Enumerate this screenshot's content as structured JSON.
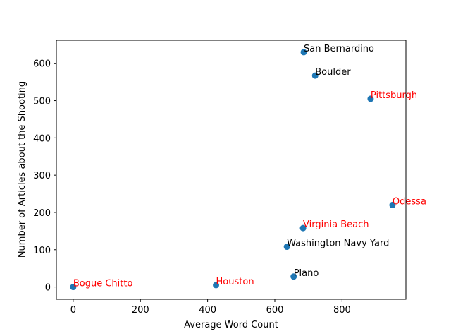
{
  "chart_data": {
    "type": "scatter",
    "title": "",
    "xlabel": "Average Word Count",
    "ylabel": "Number of Articles about the Shooting",
    "xlim": [
      -50,
      990
    ],
    "ylim": [
      -33,
      662
    ],
    "xticks": [
      0,
      200,
      400,
      600,
      800
    ],
    "yticks": [
      0,
      100,
      200,
      300,
      400,
      500,
      600
    ],
    "grid": false,
    "marker_color": "#1f77b4",
    "label_colors": {
      "default": "#000000",
      "highlight": "#ff0000"
    },
    "points": [
      {
        "label": "San Bernardino",
        "x": 686,
        "y": 630,
        "highlight": false
      },
      {
        "label": "Boulder",
        "x": 720,
        "y": 567,
        "highlight": false
      },
      {
        "label": "Pittsburgh",
        "x": 885,
        "y": 505,
        "highlight": true
      },
      {
        "label": "Odessa",
        "x": 950,
        "y": 220,
        "highlight": true
      },
      {
        "label": "Virginia Beach",
        "x": 684,
        "y": 158,
        "highlight": true
      },
      {
        "label": "Washington Navy Yard",
        "x": 636,
        "y": 108,
        "highlight": false
      },
      {
        "label": "Plano",
        "x": 656,
        "y": 28,
        "highlight": false
      },
      {
        "label": "Houston",
        "x": 425,
        "y": 5,
        "highlight": true
      },
      {
        "label": "Bogue Chitto",
        "x": 0,
        "y": 0,
        "highlight": true
      }
    ]
  }
}
